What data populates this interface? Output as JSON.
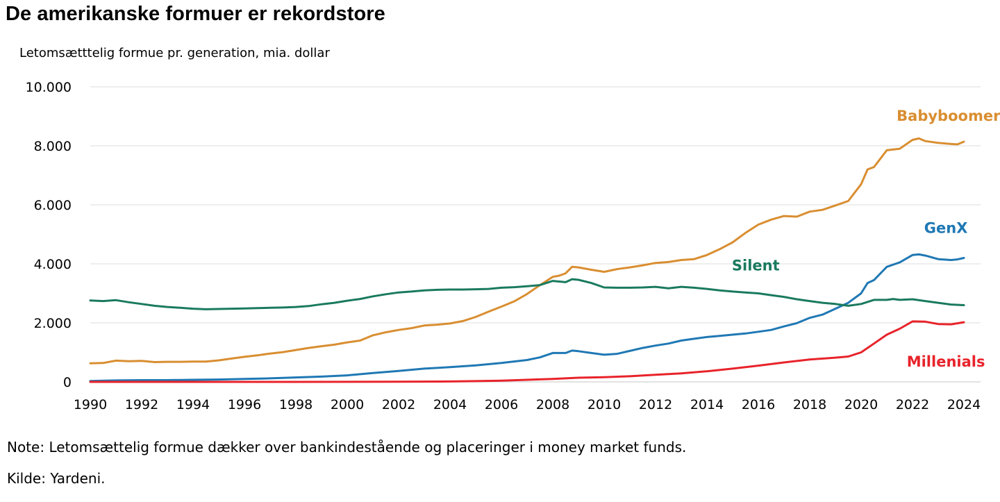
{
  "title": "De amerikanske formuer er rekordstore",
  "subtitle": "Letomsætttelig formue pr. generation, mia. dollar",
  "note": "Note: Letomsættelig formue dækker over bankindestående og placeringer i money market funds.",
  "source": "Kilde: Yardeni.",
  "chart_data": {
    "type": "line",
    "title": "De amerikanske formuer er rekordstore",
    "ylabel": "Letomsætttelig formue pr. generation, mia. dollar",
    "xlabel": "",
    "xlim": [
      1990,
      2024.6
    ],
    "ylim": [
      0,
      10000
    ],
    "grid": true,
    "y_ticks": [
      {
        "value": 0,
        "label": "0"
      },
      {
        "value": 2000,
        "label": "2.000"
      },
      {
        "value": 4000,
        "label": "4.000"
      },
      {
        "value": 6000,
        "label": "6.000"
      },
      {
        "value": 8000,
        "label": "8.000"
      },
      {
        "value": 10000,
        "label": "10.000"
      }
    ],
    "x_ticks": [
      {
        "value": 1990,
        "label": "1990"
      },
      {
        "value": 1992,
        "label": "1992"
      },
      {
        "value": 1994,
        "label": "1994"
      },
      {
        "value": 1996,
        "label": "1996"
      },
      {
        "value": 1998,
        "label": "1998"
      },
      {
        "value": 2000,
        "label": "2000"
      },
      {
        "value": 2002,
        "label": "2002"
      },
      {
        "value": 2004,
        "label": "2004"
      },
      {
        "value": 2006,
        "label": "2006"
      },
      {
        "value": 2008,
        "label": "2008"
      },
      {
        "value": 2010,
        "label": "2010"
      },
      {
        "value": 2012,
        "label": "2012"
      },
      {
        "value": 2014,
        "label": "2014"
      },
      {
        "value": 2016,
        "label": "2016"
      },
      {
        "value": 2018,
        "label": "2018"
      },
      {
        "value": 2020,
        "label": "2020"
      },
      {
        "value": 2022,
        "label": "2022"
      },
      {
        "value": 2024,
        "label": "2024"
      }
    ],
    "series": [
      {
        "name": "Babyboomer",
        "color": "#d98e31",
        "label_at": [
          2023.4,
          8850
        ],
        "points": [
          [
            1990,
            630
          ],
          [
            1990.5,
            640
          ],
          [
            1991,
            720
          ],
          [
            1991.5,
            700
          ],
          [
            1992,
            710
          ],
          [
            1992.5,
            670
          ],
          [
            1993,
            680
          ],
          [
            1993.5,
            680
          ],
          [
            1994,
            690
          ],
          [
            1994.5,
            690
          ],
          [
            1995,
            730
          ],
          [
            1995.5,
            790
          ],
          [
            1996,
            850
          ],
          [
            1996.5,
            900
          ],
          [
            1997,
            960
          ],
          [
            1997.5,
            1010
          ],
          [
            1998,
            1080
          ],
          [
            1998.5,
            1150
          ],
          [
            1999,
            1210
          ],
          [
            1999.5,
            1260
          ],
          [
            2000,
            1340
          ],
          [
            2000.5,
            1400
          ],
          [
            2001,
            1580
          ],
          [
            2001.5,
            1680
          ],
          [
            2002,
            1760
          ],
          [
            2002.5,
            1820
          ],
          [
            2003,
            1910
          ],
          [
            2003.5,
            1940
          ],
          [
            2004,
            1980
          ],
          [
            2004.5,
            2060
          ],
          [
            2005,
            2200
          ],
          [
            2005.5,
            2380
          ],
          [
            2006,
            2550
          ],
          [
            2006.5,
            2730
          ],
          [
            2007,
            2980
          ],
          [
            2007.5,
            3280
          ],
          [
            2008,
            3560
          ],
          [
            2008.25,
            3600
          ],
          [
            2008.5,
            3680
          ],
          [
            2008.75,
            3900
          ],
          [
            2009,
            3880
          ],
          [
            2009.5,
            3800
          ],
          [
            2010,
            3730
          ],
          [
            2010.5,
            3820
          ],
          [
            2011,
            3880
          ],
          [
            2011.5,
            3950
          ],
          [
            2012,
            4030
          ],
          [
            2012.5,
            4060
          ],
          [
            2013,
            4130
          ],
          [
            2013.5,
            4160
          ],
          [
            2014,
            4300
          ],
          [
            2014.5,
            4500
          ],
          [
            2015,
            4730
          ],
          [
            2015.5,
            5050
          ],
          [
            2016,
            5330
          ],
          [
            2016.5,
            5500
          ],
          [
            2017,
            5620
          ],
          [
            2017.5,
            5600
          ],
          [
            2018,
            5770
          ],
          [
            2018.5,
            5830
          ],
          [
            2019,
            5980
          ],
          [
            2019.5,
            6130
          ],
          [
            2020,
            6700
          ],
          [
            2020.25,
            7200
          ],
          [
            2020.5,
            7280
          ],
          [
            2021,
            7850
          ],
          [
            2021.5,
            7900
          ],
          [
            2022,
            8200
          ],
          [
            2022.25,
            8250
          ],
          [
            2022.5,
            8160
          ],
          [
            2023,
            8100
          ],
          [
            2023.5,
            8060
          ],
          [
            2023.75,
            8050
          ],
          [
            2024,
            8140
          ]
        ]
      },
      {
        "name": "GenX",
        "color": "#1f78b4",
        "label_at": [
          2023.3,
          5050
        ],
        "points": [
          [
            1990,
            30
          ],
          [
            1991,
            50
          ],
          [
            1992,
            60
          ],
          [
            1993,
            60
          ],
          [
            1994,
            70
          ],
          [
            1995,
            80
          ],
          [
            1996,
            100
          ],
          [
            1997,
            120
          ],
          [
            1998,
            150
          ],
          [
            1999,
            180
          ],
          [
            2000,
            220
          ],
          [
            2001,
            300
          ],
          [
            2002,
            370
          ],
          [
            2003,
            450
          ],
          [
            2004,
            500
          ],
          [
            2005,
            560
          ],
          [
            2006,
            640
          ],
          [
            2007,
            740
          ],
          [
            2007.5,
            830
          ],
          [
            2008,
            980
          ],
          [
            2008.5,
            980
          ],
          [
            2008.75,
            1060
          ],
          [
            2009,
            1040
          ],
          [
            2009.5,
            980
          ],
          [
            2010,
            920
          ],
          [
            2010.5,
            950
          ],
          [
            2011,
            1050
          ],
          [
            2011.5,
            1150
          ],
          [
            2012,
            1230
          ],
          [
            2012.5,
            1300
          ],
          [
            2013,
            1400
          ],
          [
            2013.5,
            1460
          ],
          [
            2014,
            1520
          ],
          [
            2014.5,
            1560
          ],
          [
            2015,
            1600
          ],
          [
            2015.5,
            1640
          ],
          [
            2016,
            1700
          ],
          [
            2016.5,
            1760
          ],
          [
            2017,
            1880
          ],
          [
            2017.5,
            1990
          ],
          [
            2018,
            2170
          ],
          [
            2018.5,
            2280
          ],
          [
            2019,
            2480
          ],
          [
            2019.5,
            2680
          ],
          [
            2020,
            3000
          ],
          [
            2020.25,
            3350
          ],
          [
            2020.5,
            3450
          ],
          [
            2021,
            3900
          ],
          [
            2021.5,
            4050
          ],
          [
            2022,
            4300
          ],
          [
            2022.25,
            4320
          ],
          [
            2022.5,
            4280
          ],
          [
            2023,
            4160
          ],
          [
            2023.5,
            4130
          ],
          [
            2023.75,
            4150
          ],
          [
            2024,
            4200
          ]
        ]
      },
      {
        "name": "Silent",
        "color": "#1a7a5e",
        "label_at": [
          2015.9,
          3780
        ],
        "points": [
          [
            1990,
            2760
          ],
          [
            1990.5,
            2740
          ],
          [
            1991,
            2770
          ],
          [
            1991.5,
            2700
          ],
          [
            1992,
            2640
          ],
          [
            1992.5,
            2580
          ],
          [
            1993,
            2540
          ],
          [
            1993.5,
            2510
          ],
          [
            1994,
            2480
          ],
          [
            1994.5,
            2460
          ],
          [
            1995,
            2470
          ],
          [
            1995.5,
            2480
          ],
          [
            1996,
            2490
          ],
          [
            1996.5,
            2500
          ],
          [
            1997,
            2510
          ],
          [
            1997.5,
            2520
          ],
          [
            1998,
            2540
          ],
          [
            1998.5,
            2570
          ],
          [
            1999,
            2630
          ],
          [
            1999.5,
            2680
          ],
          [
            2000,
            2750
          ],
          [
            2000.5,
            2810
          ],
          [
            2001,
            2900
          ],
          [
            2001.5,
            2970
          ],
          [
            2002,
            3030
          ],
          [
            2002.5,
            3060
          ],
          [
            2003,
            3100
          ],
          [
            2003.5,
            3120
          ],
          [
            2004,
            3130
          ],
          [
            2004.5,
            3130
          ],
          [
            2005,
            3140
          ],
          [
            2005.5,
            3150
          ],
          [
            2006,
            3190
          ],
          [
            2006.5,
            3210
          ],
          [
            2007,
            3240
          ],
          [
            2007.5,
            3280
          ],
          [
            2008,
            3420
          ],
          [
            2008.25,
            3400
          ],
          [
            2008.5,
            3380
          ],
          [
            2008.75,
            3480
          ],
          [
            2009,
            3460
          ],
          [
            2009.5,
            3350
          ],
          [
            2010,
            3200
          ],
          [
            2010.5,
            3190
          ],
          [
            2011,
            3190
          ],
          [
            2011.5,
            3200
          ],
          [
            2012,
            3220
          ],
          [
            2012.5,
            3170
          ],
          [
            2013,
            3220
          ],
          [
            2013.5,
            3190
          ],
          [
            2014,
            3150
          ],
          [
            2014.5,
            3100
          ],
          [
            2015,
            3060
          ],
          [
            2015.5,
            3030
          ],
          [
            2016,
            3000
          ],
          [
            2016.5,
            2940
          ],
          [
            2017,
            2880
          ],
          [
            2017.5,
            2800
          ],
          [
            2018,
            2740
          ],
          [
            2018.5,
            2680
          ],
          [
            2019,
            2640
          ],
          [
            2019.5,
            2580
          ],
          [
            2020,
            2640
          ],
          [
            2020.5,
            2780
          ],
          [
            2021,
            2780
          ],
          [
            2021.25,
            2810
          ],
          [
            2021.5,
            2780
          ],
          [
            2022,
            2800
          ],
          [
            2022.5,
            2740
          ],
          [
            2023,
            2680
          ],
          [
            2023.5,
            2620
          ],
          [
            2024,
            2600
          ]
        ]
      },
      {
        "name": "Millenials",
        "color": "#e8232a",
        "label_at": [
          2023.3,
          520
        ],
        "points": [
          [
            1990,
            0
          ],
          [
            1994,
            0
          ],
          [
            1998,
            0
          ],
          [
            2002,
            5
          ],
          [
            2004,
            15
          ],
          [
            2005,
            25
          ],
          [
            2006,
            40
          ],
          [
            2007,
            70
          ],
          [
            2008,
            100
          ],
          [
            2009,
            140
          ],
          [
            2010,
            160
          ],
          [
            2011,
            190
          ],
          [
            2012,
            240
          ],
          [
            2013,
            290
          ],
          [
            2014,
            360
          ],
          [
            2015,
            450
          ],
          [
            2016,
            550
          ],
          [
            2017,
            660
          ],
          [
            2018,
            760
          ],
          [
            2019,
            820
          ],
          [
            2019.5,
            860
          ],
          [
            2020,
            1000
          ],
          [
            2020.5,
            1300
          ],
          [
            2021,
            1600
          ],
          [
            2021.5,
            1800
          ],
          [
            2022,
            2050
          ],
          [
            2022.5,
            2040
          ],
          [
            2023,
            1960
          ],
          [
            2023.5,
            1950
          ],
          [
            2024,
            2020
          ]
        ]
      }
    ]
  }
}
